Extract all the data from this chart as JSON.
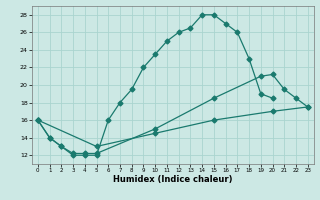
{
  "title": "",
  "xlabel": "Humidex (Indice chaleur)",
  "bg_color": "#cce8e4",
  "grid_color": "#aad4cf",
  "line_color": "#1a7a6e",
  "xlim": [
    -0.5,
    23.5
  ],
  "ylim": [
    11,
    29
  ],
  "xticks": [
    0,
    1,
    2,
    3,
    4,
    5,
    6,
    7,
    8,
    9,
    10,
    11,
    12,
    13,
    14,
    15,
    16,
    17,
    18,
    19,
    20,
    21,
    22,
    23
  ],
  "yticks": [
    12,
    14,
    16,
    18,
    20,
    22,
    24,
    26,
    28
  ],
  "line1_x": [
    0,
    1,
    2,
    3,
    4,
    5,
    6,
    7,
    8,
    9,
    10,
    11,
    12,
    13,
    14,
    15,
    16,
    17,
    18,
    19,
    20
  ],
  "line1_y": [
    16,
    14,
    13,
    12,
    12,
    12,
    16,
    18,
    19.5,
    22,
    23.5,
    25,
    26,
    26.5,
    28,
    28,
    27,
    26,
    23,
    19,
    18.5
  ],
  "line2_x": [
    0,
    1,
    2,
    3,
    4,
    5,
    10,
    15,
    19,
    20,
    21,
    22,
    23
  ],
  "line2_y": [
    16,
    14,
    13,
    12.2,
    12.2,
    12.2,
    15,
    18.5,
    21,
    21.2,
    19.5,
    18.5,
    17.5
  ],
  "line3_x": [
    0,
    5,
    10,
    15,
    20,
    23
  ],
  "line3_y": [
    16,
    13.0,
    14.5,
    16.0,
    17.0,
    17.5
  ]
}
